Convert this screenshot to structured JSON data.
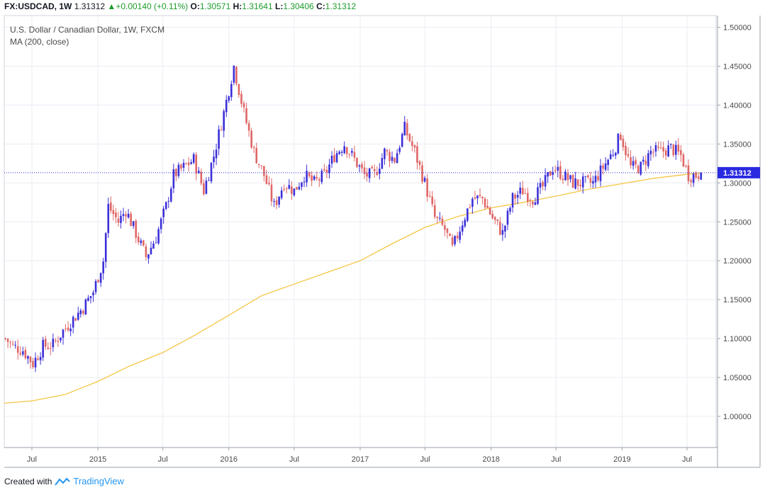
{
  "header": {
    "symbol": "FX:USDCAD,",
    "interval": "1W",
    "last": "1.31312",
    "change": "+0.00140 (+0.11%)",
    "open_label": "O:",
    "open": "1.30571",
    "high_label": "H:",
    "high": "1.31641",
    "low_label": "L:",
    "low": "1.30406",
    "close_label": "C:",
    "close": "1.31312"
  },
  "legend": {
    "title": "U.S. Dollar / Canadian Dollar, 1W, FXCM",
    "indicator": "MA (200, close)"
  },
  "footer": {
    "created_with": "Created with",
    "brand": "TradingView"
  },
  "colors": {
    "up": "#3b2fd8",
    "down": "#e06666",
    "ma": "#f4c645",
    "price_line": "#2a2ae0",
    "grid": "#e9ecf2"
  },
  "chart_data": {
    "type": "candlestick",
    "ylim": [
      0.96,
      1.515
    ],
    "y_ticks": [
      1.0,
      1.05,
      1.1,
      1.15,
      1.2,
      1.25,
      1.3,
      1.35,
      1.4,
      1.45,
      1.5
    ],
    "y_tick_labels": [
      "1.00000",
      "1.05000",
      "1.10000",
      "1.15000",
      "1.20000",
      "1.25000",
      "1.30000",
      "1.35000",
      "1.40000",
      "1.45000",
      "1.50000"
    ],
    "x_ticks": [
      {
        "label": "Jul",
        "date": "2014-07-01"
      },
      {
        "label": "2015",
        "date": "2015-01-01"
      },
      {
        "label": "Jul",
        "date": "2015-07-01"
      },
      {
        "label": "2016",
        "date": "2016-01-01"
      },
      {
        "label": "Jul",
        "date": "2016-07-01"
      },
      {
        "label": "2017",
        "date": "2017-01-01"
      },
      {
        "label": "Jul",
        "date": "2017-07-01"
      },
      {
        "label": "2018",
        "date": "2018-01-01"
      },
      {
        "label": "Jul",
        "date": "2018-07-01"
      },
      {
        "label": "2019",
        "date": "2019-01-01"
      },
      {
        "label": "Jul",
        "date": "2019-07-01"
      }
    ],
    "x_range": [
      "2014-04-15",
      "2019-09-20"
    ],
    "current_price": 1.31312,
    "current_price_label": "1.31312",
    "close_path": [
      [
        "2014-04-18",
        1.1
      ],
      [
        "2014-05-09",
        1.09
      ],
      [
        "2014-06-06",
        1.085
      ],
      [
        "2014-07-04",
        1.068
      ],
      [
        "2014-08-01",
        1.09
      ],
      [
        "2014-08-29",
        1.092
      ],
      [
        "2014-09-26",
        1.11
      ],
      [
        "2014-10-24",
        1.125
      ],
      [
        "2014-11-21",
        1.14
      ],
      [
        "2014-12-19",
        1.16
      ],
      [
        "2015-01-16",
        1.2
      ],
      [
        "2015-01-30",
        1.27
      ],
      [
        "2015-02-27",
        1.25
      ],
      [
        "2015-03-20",
        1.265
      ],
      [
        "2015-04-17",
        1.235
      ],
      [
        "2015-05-15",
        1.205
      ],
      [
        "2015-06-12",
        1.23
      ],
      [
        "2015-07-10",
        1.27
      ],
      [
        "2015-07-31",
        1.31
      ],
      [
        "2015-08-28",
        1.32
      ],
      [
        "2015-09-25",
        1.33
      ],
      [
        "2015-10-23",
        1.29
      ],
      [
        "2015-11-20",
        1.335
      ],
      [
        "2015-12-18",
        1.39
      ],
      [
        "2016-01-15",
        1.45
      ],
      [
        "2016-02-12",
        1.39
      ],
      [
        "2016-03-11",
        1.34
      ],
      [
        "2016-04-08",
        1.31
      ],
      [
        "2016-05-06",
        1.27
      ],
      [
        "2016-06-03",
        1.3
      ],
      [
        "2016-07-01",
        1.29
      ],
      [
        "2016-07-29",
        1.31
      ],
      [
        "2016-08-26",
        1.3
      ],
      [
        "2016-09-23",
        1.31
      ],
      [
        "2016-10-21",
        1.335
      ],
      [
        "2016-11-18",
        1.35
      ],
      [
        "2016-12-16",
        1.33
      ],
      [
        "2017-01-13",
        1.31
      ],
      [
        "2017-02-10",
        1.31
      ],
      [
        "2017-03-10",
        1.34
      ],
      [
        "2017-04-07",
        1.33
      ],
      [
        "2017-05-05",
        1.37
      ],
      [
        "2017-06-02",
        1.34
      ],
      [
        "2017-06-30",
        1.3
      ],
      [
        "2017-07-28",
        1.255
      ],
      [
        "2017-08-25",
        1.24
      ],
      [
        "2017-09-15",
        1.215
      ],
      [
        "2017-10-13",
        1.25
      ],
      [
        "2017-11-10",
        1.28
      ],
      [
        "2017-12-08",
        1.28
      ],
      [
        "2018-01-05",
        1.255
      ],
      [
        "2018-02-02",
        1.235
      ],
      [
        "2018-03-02",
        1.28
      ],
      [
        "2018-03-30",
        1.29
      ],
      [
        "2018-04-27",
        1.28
      ],
      [
        "2018-05-25",
        1.295
      ],
      [
        "2018-06-22",
        1.32
      ],
      [
        "2018-07-20",
        1.31
      ],
      [
        "2018-08-17",
        1.3
      ],
      [
        "2018-09-14",
        1.3
      ],
      [
        "2018-10-12",
        1.3
      ],
      [
        "2018-11-09",
        1.32
      ],
      [
        "2018-12-07",
        1.34
      ],
      [
        "2018-12-28",
        1.362
      ],
      [
        "2019-01-25",
        1.32
      ],
      [
        "2019-02-22",
        1.32
      ],
      [
        "2019-03-22",
        1.34
      ],
      [
        "2019-04-19",
        1.34
      ],
      [
        "2019-05-17",
        1.345
      ],
      [
        "2019-06-14",
        1.335
      ],
      [
        "2019-07-05",
        1.31
      ],
      [
        "2019-07-26",
        1.31
      ],
      [
        "2019-08-09",
        1.313
      ]
    ],
    "ma": {
      "name": "MA (200, close)",
      "points": [
        [
          "2014-04-15",
          1.017
        ],
        [
          "2014-07-01",
          1.02
        ],
        [
          "2014-10-01",
          1.028
        ],
        [
          "2015-01-01",
          1.045
        ],
        [
          "2015-04-01",
          1.065
        ],
        [
          "2015-07-01",
          1.082
        ],
        [
          "2015-10-01",
          1.105
        ],
        [
          "2016-01-01",
          1.13
        ],
        [
          "2016-04-01",
          1.155
        ],
        [
          "2016-07-01",
          1.17
        ],
        [
          "2016-10-01",
          1.185
        ],
        [
          "2017-01-01",
          1.2
        ],
        [
          "2017-04-01",
          1.222
        ],
        [
          "2017-07-01",
          1.243
        ],
        [
          "2017-10-01",
          1.257
        ],
        [
          "2018-01-01",
          1.268
        ],
        [
          "2018-04-01",
          1.275
        ],
        [
          "2018-07-01",
          1.283
        ],
        [
          "2018-10-01",
          1.292
        ],
        [
          "2019-01-01",
          1.299
        ],
        [
          "2019-04-01",
          1.306
        ],
        [
          "2019-07-01",
          1.311
        ],
        [
          "2019-08-09",
          1.313
        ]
      ]
    }
  }
}
